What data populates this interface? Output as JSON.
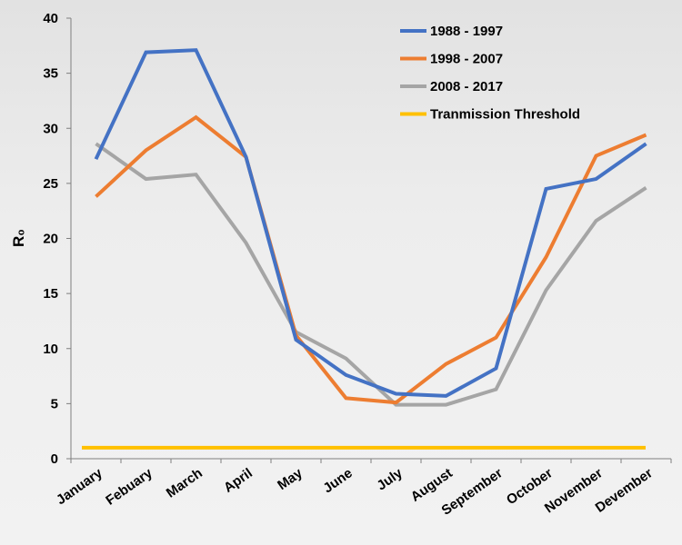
{
  "chart_data": {
    "type": "line",
    "title": "",
    "xlabel": "",
    "ylabel": "R₀",
    "ylim": [
      0,
      40
    ],
    "yticks": [
      0,
      5,
      10,
      15,
      20,
      25,
      30,
      35,
      40
    ],
    "grid": false,
    "legend_position": "top-right",
    "categories": [
      "January",
      "Febuary",
      "March",
      "April",
      "May",
      "June",
      "July",
      "August",
      "September",
      "October",
      "November",
      "Devember"
    ],
    "series": [
      {
        "name": "1988 - 1997",
        "color": "#4472c4",
        "values": [
          27.2,
          36.9,
          37.1,
          27.4,
          10.8,
          7.6,
          5.9,
          5.7,
          8.2,
          24.5,
          25.4,
          28.6
        ]
      },
      {
        "name": "1998 - 2007",
        "color": "#ed7d31",
        "values": [
          23.8,
          28.0,
          31.0,
          27.4,
          11.2,
          5.5,
          5.1,
          8.6,
          11.0,
          18.3,
          27.5,
          29.4
        ]
      },
      {
        "name": "2008 - 2017",
        "color": "#a5a5a5",
        "values": [
          28.6,
          25.4,
          25.8,
          19.6,
          11.5,
          9.1,
          4.9,
          4.9,
          6.3,
          15.3,
          21.6,
          24.6
        ]
      },
      {
        "name": "Tranmission Threshold",
        "color": "#ffc000",
        "values": [
          1,
          1,
          1,
          1,
          1,
          1,
          1,
          1,
          1,
          1,
          1,
          1
        ]
      }
    ]
  }
}
